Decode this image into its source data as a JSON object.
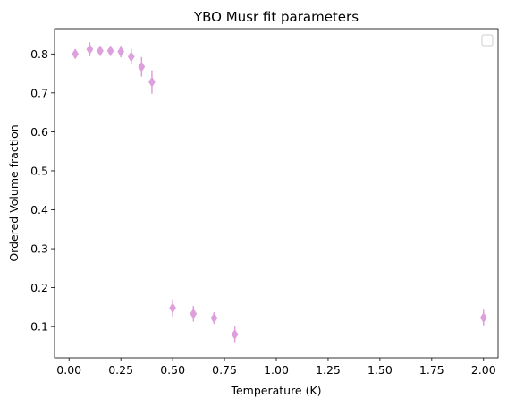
{
  "chart_data": {
    "type": "scatter",
    "title": "YBO Musr fit parameters",
    "xlabel": "Temperature (K)",
    "ylabel": "Ordered Volume fraction",
    "xlim": [
      -0.07,
      2.07
    ],
    "ylim": [
      0.02,
      0.865
    ],
    "xticks": [
      0.0,
      0.25,
      0.5,
      0.75,
      1.0,
      1.25,
      1.5,
      1.75,
      2.0
    ],
    "xtick_labels": [
      "0.00",
      "0.25",
      "0.50",
      "0.75",
      "1.00",
      "1.25",
      "1.50",
      "1.75",
      "2.00"
    ],
    "yticks": [
      0.1,
      0.2,
      0.3,
      0.4,
      0.5,
      0.6,
      0.7,
      0.8
    ],
    "ytick_labels": [
      "0.1",
      "0.2",
      "0.3",
      "0.4",
      "0.5",
      "0.6",
      "0.7",
      "0.8"
    ],
    "grid": false,
    "legend": "top-right",
    "marker": "diamond",
    "color": "#dda0dd",
    "series": [
      {
        "x": [
          0.03,
          0.1,
          0.15,
          0.2,
          0.25,
          0.3,
          0.35,
          0.4,
          0.5,
          0.6,
          0.7,
          0.8,
          2.0
        ],
        "y": [
          0.8,
          0.812,
          0.808,
          0.808,
          0.806,
          0.793,
          0.767,
          0.728,
          0.148,
          0.133,
          0.122,
          0.08,
          0.123
        ],
        "yerr": [
          0.012,
          0.018,
          0.013,
          0.013,
          0.015,
          0.02,
          0.025,
          0.03,
          0.022,
          0.02,
          0.015,
          0.02,
          0.02
        ]
      }
    ]
  }
}
